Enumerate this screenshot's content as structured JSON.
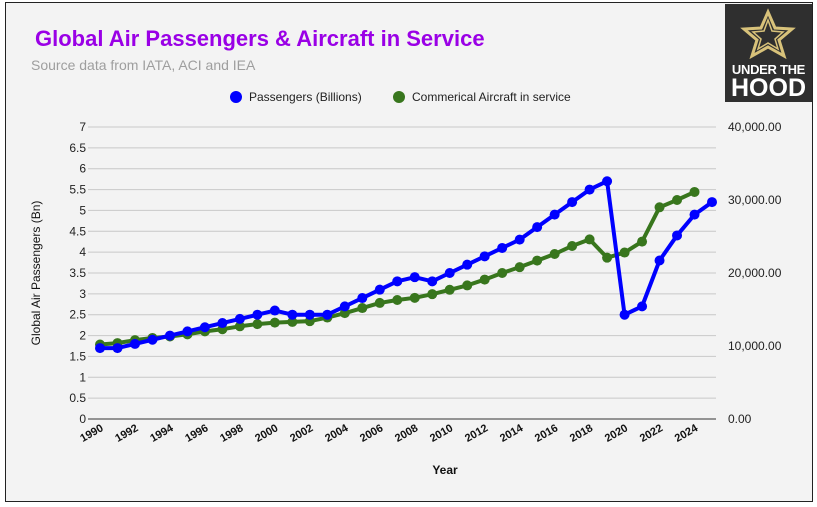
{
  "chart_data": {
    "type": "line",
    "title": "Global Air Passengers & Aircraft in Service",
    "subtitle": "Source data from IATA, ACI and IEA",
    "xlabel": "Year",
    "ylabel": "Global Air Passengers (Bn)",
    "ylim": [
      0,
      7
    ],
    "y2lim": [
      0,
      40000
    ],
    "yticks": [
      "0",
      "0.5",
      "1",
      "1.5",
      "2",
      "2.5",
      "3",
      "3.5",
      "4",
      "4.5",
      "5",
      "5.5",
      "6",
      "6.5",
      "7"
    ],
    "y2ticks": [
      "0.00",
      "10,000.00",
      "20,000.00",
      "30,000.00",
      "40,000.00"
    ],
    "xticks": [
      "1990",
      "1992",
      "1994",
      "1996",
      "1998",
      "2000",
      "2002",
      "2004",
      "2006",
      "2008",
      "2010",
      "2012",
      "2014",
      "2016",
      "2018",
      "2020",
      "2022",
      "2024"
    ],
    "legend_position": "top-center",
    "grid": true,
    "series": [
      {
        "name": "Passengers (Billions)",
        "color": "#0000ff",
        "axis": "left",
        "x": [
          1990,
          1991,
          1992,
          1993,
          1994,
          1995,
          1996,
          1997,
          1998,
          1999,
          2000,
          2001,
          2002,
          2003,
          2004,
          2005,
          2006,
          2007,
          2008,
          2009,
          2010,
          2011,
          2012,
          2013,
          2014,
          2015,
          2016,
          2017,
          2018,
          2019,
          2020,
          2021,
          2022,
          2023,
          2024,
          2025
        ],
        "values": [
          1.7,
          1.7,
          1.8,
          1.9,
          2.0,
          2.1,
          2.2,
          2.3,
          2.4,
          2.5,
          2.6,
          2.5,
          2.5,
          2.5,
          2.7,
          2.9,
          3.1,
          3.3,
          3.4,
          3.3,
          3.5,
          3.7,
          3.9,
          4.1,
          4.3,
          4.6,
          4.9,
          5.2,
          5.5,
          5.7,
          2.5,
          2.7,
          3.8,
          4.4,
          4.9,
          5.2
        ]
      },
      {
        "name": "Commerical Aircraft in service",
        "color": "#38761d",
        "axis": "right",
        "x": [
          1990,
          1991,
          1992,
          1993,
          1994,
          1995,
          1996,
          1997,
          1998,
          1999,
          2000,
          2001,
          2002,
          2003,
          2004,
          2005,
          2006,
          2007,
          2008,
          2009,
          2010,
          2011,
          2012,
          2013,
          2014,
          2015,
          2016,
          2017,
          2018,
          2019,
          2020,
          2021,
          2022,
          2023,
          2024
        ],
        "values": [
          10200,
          10400,
          10800,
          11100,
          11300,
          11600,
          12000,
          12300,
          12700,
          13000,
          13200,
          13300,
          13400,
          13900,
          14500,
          15200,
          15900,
          16300,
          16600,
          17100,
          17700,
          18300,
          19100,
          20000,
          20800,
          21700,
          22600,
          23700,
          24600,
          22100,
          22800,
          24300,
          29000,
          30000,
          31100
        ]
      }
    ]
  },
  "logo": {
    "line1": "UNDER THE",
    "line2": "HOOD"
  }
}
